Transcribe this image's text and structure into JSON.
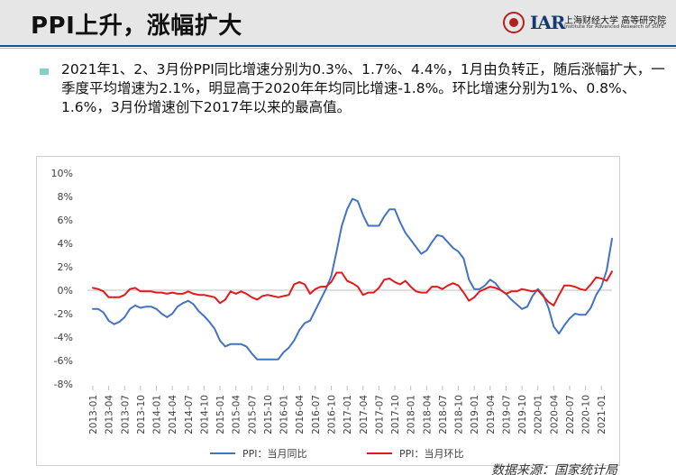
{
  "header": {
    "title": "PPI上升，涨幅扩大",
    "logo": {
      "mark": "IAR",
      "cn_text": "上海财经大学 高等研究院",
      "en_text": "Institute for Advanced Research of SUFE"
    }
  },
  "summary": {
    "text": "2021年1、2、3月份PPI同比增速分别为0.3%、1.7%、4.4%，1月由负转正，随后涨幅扩大，一季度平均增速为2.1%，明显高于2020年年均同比增速-1.8%。环比增速分别为1%、0.8%、1.6%，3月份增速创下2017年以来的最高值。"
  },
  "source": "数据来源：国家统计局",
  "chart_data": {
    "type": "line",
    "title": "",
    "xlabel": "",
    "ylabel": "",
    "ylim": [
      -8,
      10
    ],
    "yticks": [
      "-8%",
      "-6%",
      "-4%",
      "-2%",
      "0%",
      "2%",
      "4%",
      "6%",
      "8%",
      "10%"
    ],
    "grid": false,
    "legend_position": "bottom",
    "x_tick_labels": [
      "2013-01",
      "2013-04",
      "2013-07",
      "2013-10",
      "2014-01",
      "2014-04",
      "2014-07",
      "2014-10",
      "2015-01",
      "2015-04",
      "2015-07",
      "2015-10",
      "2016-01",
      "2016-04",
      "2016-07",
      "2016-10",
      "2017-01",
      "2017-04",
      "2017-07",
      "2017-10",
      "2018-01",
      "2018-04",
      "2018-07",
      "2018-10",
      "2019-01",
      "2019-04",
      "2019-07",
      "2019-10",
      "2020-01",
      "2020-04",
      "2020-07",
      "2020-10",
      "2021-01"
    ],
    "x_start": "2013-01",
    "series": [
      {
        "name": "PPI：当月同比",
        "color": "#4472c4",
        "values": [
          -1.6,
          -1.6,
          -1.9,
          -2.6,
          -2.9,
          -2.7,
          -2.3,
          -1.6,
          -1.3,
          -1.5,
          -1.4,
          -1.4,
          -1.6,
          -2.0,
          -2.3,
          -2.0,
          -1.4,
          -1.1,
          -0.9,
          -1.2,
          -1.8,
          -2.2,
          -2.7,
          -3.3,
          -4.3,
          -4.8,
          -4.6,
          -4.6,
          -4.6,
          -4.8,
          -5.4,
          -5.9,
          -5.9,
          -5.9,
          -5.9,
          -5.9,
          -5.3,
          -4.9,
          -4.3,
          -3.4,
          -2.8,
          -2.6,
          -1.7,
          -0.8,
          0.1,
          1.2,
          3.3,
          5.5,
          6.9,
          7.8,
          7.6,
          6.4,
          5.5,
          5.5,
          5.5,
          6.3,
          6.9,
          6.9,
          5.8,
          4.9,
          4.3,
          3.7,
          3.1,
          3.4,
          4.1,
          4.7,
          4.6,
          4.1,
          3.6,
          3.3,
          2.7,
          0.9,
          0.1,
          0.1,
          0.4,
          0.9,
          0.6,
          0,
          -0.3,
          -0.8,
          -1.2,
          -1.6,
          -1.4,
          -0.5,
          0.1,
          -0.4,
          -1.5,
          -3.1,
          -3.7,
          -3.0,
          -2.4,
          -2.0,
          -2.1,
          -2.1,
          -1.5,
          -0.4,
          0.3,
          1.7,
          4.4
        ]
      },
      {
        "name": "PPI：当月环比",
        "color": "#e31a1c",
        "values": [
          0.2,
          0.1,
          -0.1,
          -0.6,
          -0.6,
          -0.6,
          -0.4,
          0.1,
          0.2,
          -0.1,
          -0.1,
          -0.1,
          -0.2,
          -0.2,
          -0.3,
          -0.2,
          -0.3,
          -0.3,
          -0.1,
          -0.3,
          -0.4,
          -0.4,
          -0.5,
          -0.6,
          -1.1,
          -0.8,
          -0.1,
          -0.3,
          -0.1,
          -0.3,
          -0.6,
          -0.8,
          -0.5,
          -0.4,
          -0.5,
          -0.6,
          -0.5,
          -0.4,
          0.5,
          0.7,
          0.5,
          -0.3,
          0.1,
          0.3,
          0.3,
          0.7,
          1.5,
          1.5,
          0.8,
          0.6,
          0.3,
          -0.4,
          -0.2,
          -0.2,
          0.2,
          0.9,
          1.0,
          0.7,
          0.5,
          0.8,
          0.3,
          -0.1,
          -0.2,
          -0.2,
          0.3,
          0.3,
          0.1,
          0.4,
          0.6,
          0.4,
          -0.2,
          -0.9,
          -0.6,
          -0.1,
          0.1,
          0.3,
          0.2,
          0,
          -0.3,
          -0.1,
          -0.1,
          0.1,
          0,
          -0.1,
          0,
          -0.5,
          -1.0,
          -1.3,
          -0.4,
          0.4,
          0.4,
          0.3,
          0.1,
          0,
          0.5,
          1.1,
          1.0,
          0.8,
          1.6
        ]
      }
    ]
  }
}
